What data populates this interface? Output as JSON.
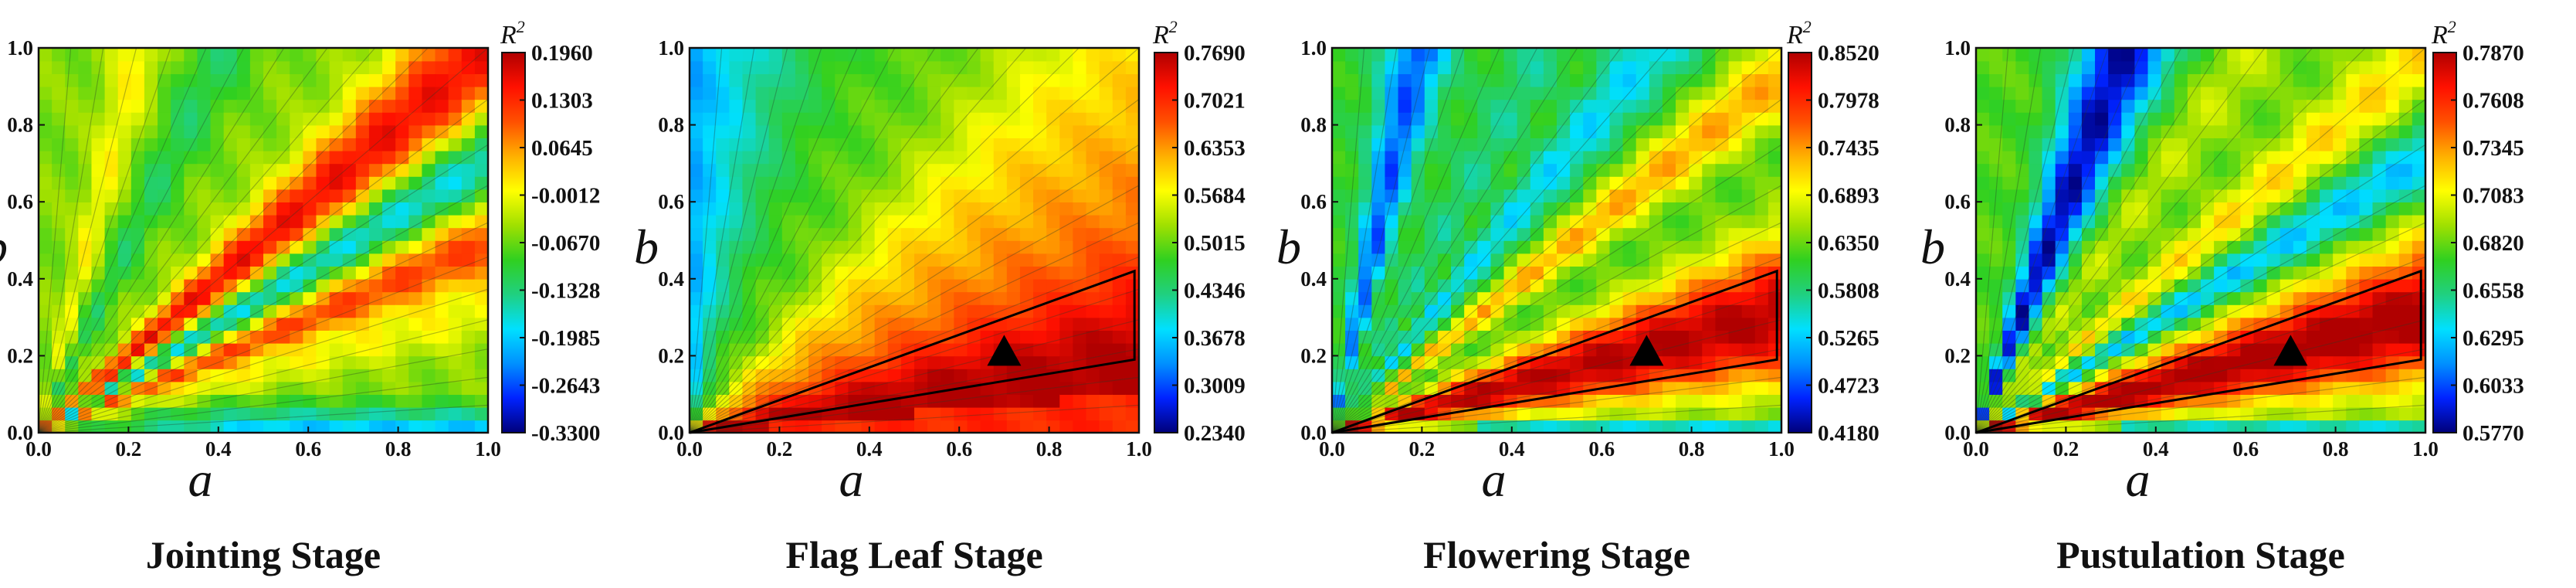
{
  "colorbar_stops": [
    "#00007a",
    "#0022ff",
    "#0090ff",
    "#00e0ff",
    "#20d080",
    "#30d020",
    "#a0e000",
    "#ffff00",
    "#ffb000",
    "#ff5000",
    "#ff1000",
    "#b00000"
  ],
  "chart_data": [
    {
      "type": "heatmap",
      "title": "Jointing Stage",
      "xlabel": "a",
      "ylabel": "b",
      "xlim": [
        0.0,
        1.0
      ],
      "ylim": [
        0.0,
        1.0
      ],
      "xticks": [
        "0.0",
        "0.2",
        "0.4",
        "0.6",
        "0.8",
        "1.0"
      ],
      "yticks": [
        "0.0",
        "0.2",
        "0.4",
        "0.6",
        "0.8",
        "1.0"
      ],
      "colorbar_label": "R",
      "colorbar_label_sup": "2",
      "colorbar_ticks": [
        "0.1960",
        "0.1303",
        "0.0645",
        "-0.0012",
        "-0.0670",
        "-0.1328",
        "-0.1985",
        "-0.2643",
        "-0.3300"
      ],
      "colorbar_range": [
        -0.33,
        0.196
      ],
      "pattern": "Radial contour bands from origin; maxima near b = 1.0a and b = 0.5a; low values along a-axis",
      "optimal_region": null
    },
    {
      "type": "heatmap",
      "title": "Flag Leaf Stage",
      "xlabel": "a",
      "ylabel": "b",
      "xlim": [
        0.0,
        1.0
      ],
      "ylim": [
        0.0,
        1.0
      ],
      "xticks": [
        "0.0",
        "0.2",
        "0.4",
        "0.6",
        "0.8",
        "1.0"
      ],
      "yticks": [
        "0.0",
        "0.2",
        "0.4",
        "0.6",
        "0.8",
        "1.0"
      ],
      "colorbar_label": "R",
      "colorbar_label_sup": "2",
      "colorbar_ticks": [
        "0.7690",
        "0.7021",
        "0.6353",
        "0.5684",
        "0.5015",
        "0.4346",
        "0.3678",
        "0.3009",
        "0.2340"
      ],
      "colorbar_range": [
        0.234,
        0.769
      ],
      "pattern": "Values rise from upper-left (low) to lower-right (high)",
      "optimal_region": {
        "vertices": [
          [
            0.0,
            0.0
          ],
          [
            0.99,
            0.42
          ],
          [
            0.99,
            0.19
          ]
        ],
        "marker": [
          0.7,
          0.21
        ]
      }
    },
    {
      "type": "heatmap",
      "title": "Flowering Stage",
      "xlabel": "a",
      "ylabel": "b",
      "xlim": [
        0.0,
        1.0
      ],
      "ylim": [
        0.0,
        1.0
      ],
      "xticks": [
        "0.0",
        "0.2",
        "0.4",
        "0.6",
        "0.8",
        "1.0"
      ],
      "yticks": [
        "0.0",
        "0.2",
        "0.4",
        "0.6",
        "0.8",
        "1.0"
      ],
      "colorbar_label": "R",
      "colorbar_label_sup": "2",
      "colorbar_ticks": [
        "0.8520",
        "0.7978",
        "0.7435",
        "0.6893",
        "0.6350",
        "0.5808",
        "0.5265",
        "0.4723",
        "0.4180"
      ],
      "colorbar_range": [
        0.418,
        0.852
      ],
      "pattern": "Radial bands; maximum along b between 0.2a and 0.4a",
      "optimal_region": {
        "vertices": [
          [
            0.0,
            0.0
          ],
          [
            0.99,
            0.42
          ],
          [
            0.99,
            0.19
          ]
        ],
        "marker": [
          0.7,
          0.21
        ]
      }
    },
    {
      "type": "heatmap",
      "title": "Pustulation Stage",
      "xlabel": "a",
      "ylabel": "b",
      "xlim": [
        0.0,
        1.0
      ],
      "ylim": [
        0.0,
        1.0
      ],
      "xticks": [
        "0.0",
        "0.2",
        "0.4",
        "0.6",
        "0.8",
        "1.0"
      ],
      "yticks": [
        "0.0",
        "0.2",
        "0.4",
        "0.6",
        "0.8",
        "1.0"
      ],
      "colorbar_label": "R",
      "colorbar_label_sup": "2",
      "colorbar_ticks": [
        "0.7870",
        "0.7608",
        "0.7345",
        "0.7083",
        "0.6820",
        "0.6558",
        "0.6295",
        "0.6033",
        "0.5770"
      ],
      "colorbar_range": [
        0.577,
        0.787
      ],
      "pattern": "Radial bands; maximum along b between 0.2a and 0.4a; minimum band near b = 2.5a",
      "optimal_region": {
        "vertices": [
          [
            0.0,
            0.0
          ],
          [
            0.99,
            0.42
          ],
          [
            0.99,
            0.19
          ]
        ],
        "marker": [
          0.7,
          0.21
        ]
      }
    }
  ]
}
